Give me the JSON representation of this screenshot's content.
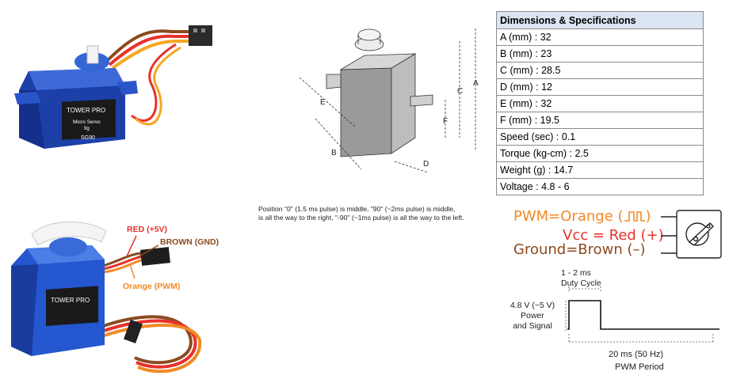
{
  "specs": {
    "title": "Dimensions & Specifications",
    "rows": [
      "A (mm) : 32",
      "B (mm) : 23",
      "C (mm) : 28.5",
      "D (mm) : 12",
      "E (mm) : 32",
      "F (mm) : 19.5",
      "Speed (sec) : 0.1",
      "Torque (kg-cm) : 2.5",
      "Weight (g) : 14.7",
      "Voltage : 4.8 - 6"
    ]
  },
  "position_note": {
    "line1": "Position \"0\" (1.5 ms pulse) is middle, \"90\" (~2ms pulse) is middle,",
    "line2": "is all the way to the right, \"-90\" (~1ms pulse) is all the way to the left."
  },
  "servo_photo": {
    "brand_line1": "TOWER PRO",
    "brand_line2": "Micro Servo",
    "brand_line3": "9g",
    "model": "SG90"
  },
  "wiring": {
    "red_label": "RED (+5V)",
    "brown_label": "BROWN (GND)",
    "orange_label": "Orange (PWM)",
    "colors": {
      "red": "#e8312a",
      "brown": "#8b4a1f",
      "orange": "#f08a24"
    }
  },
  "dimension_letters": [
    "A",
    "B",
    "C",
    "D",
    "E",
    "F"
  ],
  "pwm_legend": {
    "pwm_text": "PWM=Orange (",
    "pwm_close": ")",
    "vcc_text": "Vcc = Red (+)",
    "gnd_text": "Ground=Brown (–)"
  },
  "signal": {
    "duty_range": "1 - 2 ms",
    "duty_label": "Duty Cycle",
    "voltage": "4.8 V (~5 V)",
    "power": "Power",
    "and_signal": "and Signal",
    "period": "20 ms (50 Hz)",
    "period_label": "PWM Period"
  }
}
